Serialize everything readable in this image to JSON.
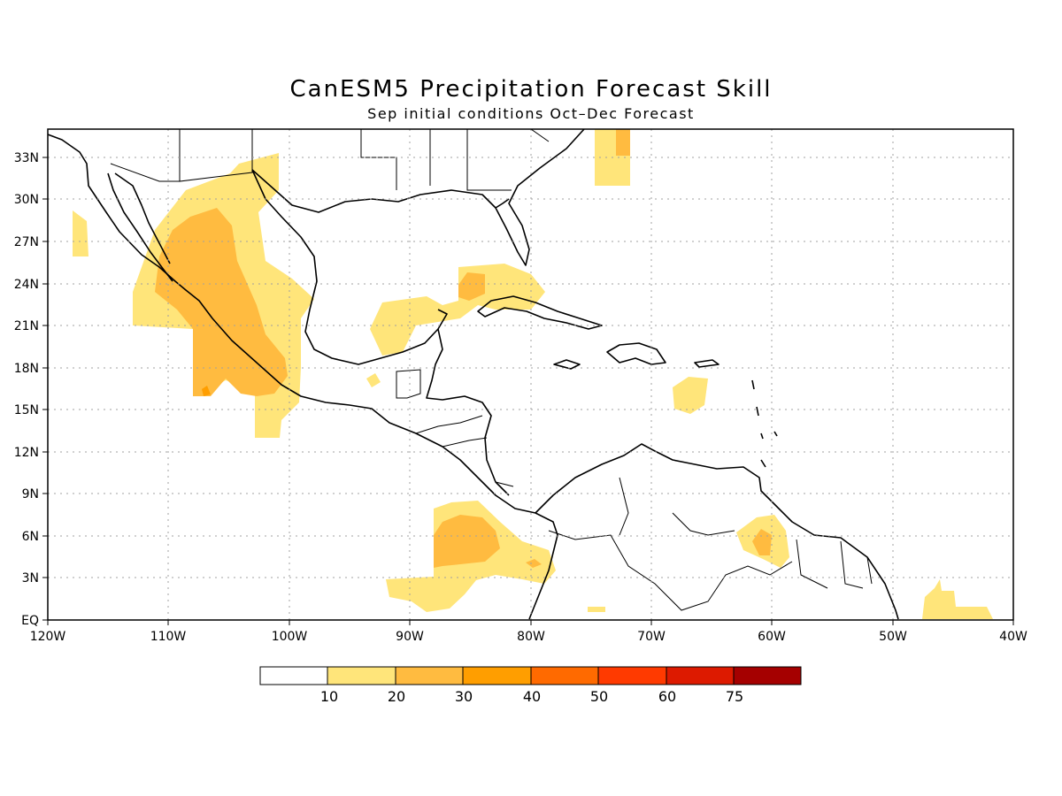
{
  "title": "CanESM5 Precipitation Forecast Skill",
  "subtitle": "Sep initial conditions   Oct–Dec Forecast",
  "map": {
    "lon_range": [
      -120,
      -40
    ],
    "lat_range": [
      0,
      35
    ],
    "lat_labels": [
      "EQ",
      "3N",
      "6N",
      "9N",
      "12N",
      "15N",
      "18N",
      "21N",
      "24N",
      "27N",
      "30N",
      "33N"
    ],
    "lon_labels": [
      "120W",
      "110W",
      "100W",
      "90W",
      "80W",
      "70W",
      "60W",
      "50W",
      "40W"
    ],
    "grid": "dotted"
  },
  "colorbar": {
    "labels": [
      "10",
      "20",
      "30",
      "40",
      "50",
      "60",
      "75"
    ],
    "colors": [
      "#ffffff",
      "#ffe57a",
      "#ffbb40",
      "#ff9e00",
      "#ff6a00",
      "#ff3a00",
      "#dd1a00",
      "#a50000"
    ]
  }
}
